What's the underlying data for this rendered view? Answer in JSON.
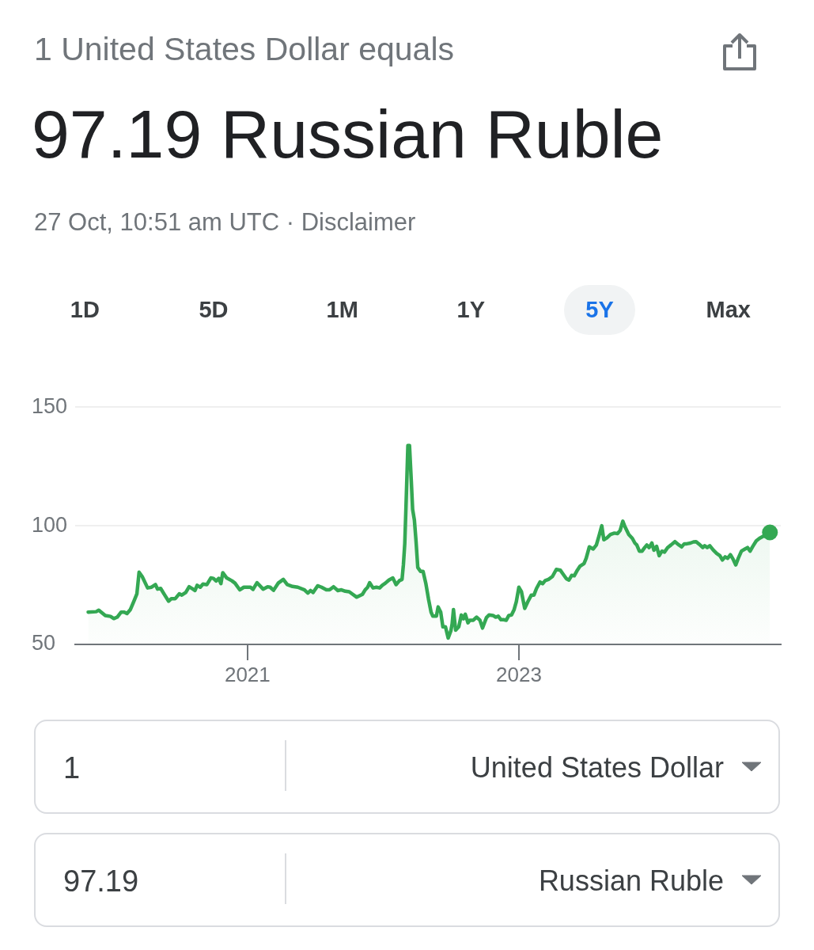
{
  "chart_data": {
    "type": "area",
    "title": "97.19 Russian Ruble",
    "subtitle": "1 United States Dollar equals",
    "annotations": [
      "27 Oct, 10:51 am UTC · Disclaimer",
      "1D",
      "5D",
      "1M",
      "1Y",
      "5Y",
      "Max",
      "1",
      "United States Dollar",
      "97.19",
      "Russian Ruble"
    ],
    "x": [
      2019.826,
      2019.885,
      2019.904,
      2019.952,
      2019.991,
      2020.015,
      2020.04,
      2020.069,
      2020.092,
      2020.112,
      2020.137,
      2020.166,
      2020.185,
      2020.201,
      2020.224,
      2020.264,
      2020.293,
      2020.322,
      2020.337,
      2020.36,
      2020.39,
      2020.419,
      2020.439,
      2020.468,
      2020.497,
      2020.516,
      2020.545,
      2020.57,
      2020.598,
      2020.613,
      2020.629,
      2020.652,
      2020.672,
      2020.701,
      2020.73,
      2020.749,
      2020.769,
      2020.788,
      2020.804,
      2020.818,
      2020.847,
      2020.885,
      2020.908,
      2020.943,
      2020.973,
      2021.022,
      2021.041,
      2021.07,
      2021.115,
      2021.148,
      2021.167,
      2021.192,
      2021.226,
      2021.264,
      2021.293,
      2021.332,
      2021.371,
      2021.42,
      2021.445,
      2021.465,
      2021.484,
      2021.517,
      2021.546,
      2021.581,
      2021.605,
      2021.634,
      2021.666,
      2021.692,
      2021.721,
      2021.75,
      2021.776,
      2021.805,
      2021.847,
      2021.867,
      2021.886,
      2021.9,
      2021.925,
      2021.95,
      2021.974,
      2021.993,
      2022.016,
      2022.042,
      2022.071,
      2022.095,
      2022.12,
      2022.139,
      2022.149,
      2022.159,
      2022.168,
      2022.182,
      2022.194,
      2022.207,
      2022.217,
      2022.23,
      2022.242,
      2022.255,
      2022.275,
      2022.294,
      2022.314,
      2022.334,
      2022.353,
      2022.366,
      2022.392,
      2022.405,
      2022.424,
      2022.44,
      2022.459,
      2022.479,
      2022.499,
      2022.508,
      2022.518,
      2022.534,
      2022.557,
      2022.576,
      2022.592,
      2022.605,
      2022.625,
      2022.638,
      2022.664,
      2022.689,
      2022.713,
      2022.732,
      2022.761,
      2022.78,
      2022.809,
      2022.829,
      2022.848,
      2022.868,
      2022.887,
      2022.907,
      2022.926,
      2022.946,
      2022.965,
      2022.981,
      2023.0,
      2023.019,
      2023.043,
      2023.066,
      2023.092,
      2023.111,
      2023.13,
      2023.156,
      2023.175,
      2023.194,
      2023.218,
      2023.247,
      2023.276,
      2023.305,
      2023.325,
      2023.35,
      2023.369,
      2023.389,
      2023.408,
      2023.431,
      2023.451,
      2023.48,
      2023.496,
      2023.519,
      2023.548,
      2023.571,
      2023.591,
      2023.611,
      2023.626,
      2023.649,
      2023.675,
      2023.704,
      2023.727,
      2023.746,
      2023.766,
      2023.781,
      2023.81,
      2023.836,
      2023.855,
      2023.869,
      2023.888,
      2023.908,
      2023.927,
      2023.943,
      2023.96,
      2023.98,
      2023.995,
      2024.015,
      2024.034,
      2024.054,
      2024.073,
      2024.096,
      2024.121,
      2024.15,
      2024.18,
      2024.199,
      2024.219,
      2024.238,
      2024.264,
      2024.287,
      2024.306,
      2024.329,
      2024.355,
      2024.369,
      2024.388,
      2024.407,
      2024.433,
      2024.458,
      2024.481,
      2024.5,
      2024.52,
      2024.539,
      2024.559,
      2024.578,
      2024.598,
      2024.617,
      2024.64,
      2024.666,
      2024.685,
      2024.704,
      2024.724,
      2024.749,
      2024.773,
      2024.802,
      2024.821,
      2024.85
    ],
    "series": [
      {
        "color": "#34a853",
        "values": [
          63.6,
          63.8,
          64.4,
          62.2,
          61.8,
          60.9,
          61.5,
          63.6,
          63.6,
          63.0,
          64.7,
          68.6,
          71.3,
          80.4,
          78.6,
          73.8,
          74.1,
          75.2,
          73.3,
          73.6,
          70.8,
          68.2,
          69.3,
          69.3,
          71.3,
          70.8,
          71.9,
          74.3,
          73.3,
          72.7,
          74.9,
          74.1,
          75.4,
          75.2,
          78.0,
          77.8,
          76.7,
          77.8,
          75.6,
          80.2,
          78.0,
          76.8,
          75.8,
          73.0,
          74.1,
          74.1,
          73.2,
          76.0,
          73.3,
          74.3,
          74.1,
          72.8,
          75.8,
          77.4,
          75.2,
          74.4,
          74.1,
          73.0,
          71.6,
          72.7,
          71.9,
          74.7,
          74.1,
          73.0,
          73.0,
          74.3,
          72.7,
          73.0,
          72.4,
          72.2,
          71.1,
          69.9,
          71.1,
          73.0,
          74.1,
          76.0,
          73.8,
          74.1,
          73.8,
          74.9,
          75.8,
          77.1,
          78.0,
          75.2,
          76.9,
          77.4,
          83.6,
          92.4,
          108.0,
          133.8,
          133.8,
          119.1,
          106.9,
          102.4,
          93.6,
          82.4,
          80.8,
          80.8,
          75.8,
          69.1,
          63.6,
          61.9,
          61.9,
          65.8,
          63.6,
          57.4,
          57.4,
          52.7,
          55.8,
          58.6,
          64.7,
          56.0,
          57.4,
          62.4,
          60.8,
          62.7,
          59.1,
          60.2,
          60.2,
          61.5,
          60.2,
          56.9,
          61.3,
          62.4,
          62.2,
          61.5,
          61.9,
          60.4,
          60.4,
          60.2,
          62.2,
          62.4,
          64.7,
          68.0,
          74.1,
          72.2,
          65.2,
          68.0,
          70.8,
          70.8,
          73.6,
          76.3,
          75.6,
          76.9,
          77.4,
          78.6,
          81.6,
          81.3,
          79.7,
          77.7,
          77.1,
          79.1,
          78.9,
          81.3,
          83.0,
          84.1,
          86.3,
          91.1,
          90.2,
          91.9,
          95.8,
          100.0,
          94.1,
          94.9,
          96.3,
          96.9,
          96.7,
          98.0,
          101.9,
          99.7,
          96.3,
          94.7,
          92.7,
          91.9,
          89.3,
          89.3,
          90.8,
          91.9,
          90.8,
          92.7,
          89.7,
          91.3,
          87.4,
          89.3,
          88.9,
          90.8,
          91.9,
          93.3,
          91.9,
          91.1,
          92.4,
          92.4,
          92.7,
          93.2,
          93.3,
          92.2,
          90.8,
          91.6,
          90.8,
          91.6,
          89.7,
          88.3,
          87.4,
          85.6,
          86.9,
          86.3,
          87.8,
          86.0,
          83.5,
          86.3,
          89.3,
          90.2,
          90.8,
          89.3,
          91.3,
          93.6,
          94.7,
          95.6,
          96.7,
          97.2
        ]
      },
      {
        "type": "scatter",
        "color": "#34a853",
        "marker": "circle",
        "x": [
          2024.85
        ],
        "values": [
          97.2
        ]
      }
    ],
    "xlim": [
      2019.73,
      2024.93
    ],
    "xticks": [
      2021,
      2023
    ],
    "ylim": [
      50,
      150
    ],
    "yticks": [
      50,
      100,
      150
    ],
    "grid": "y"
  }
}
